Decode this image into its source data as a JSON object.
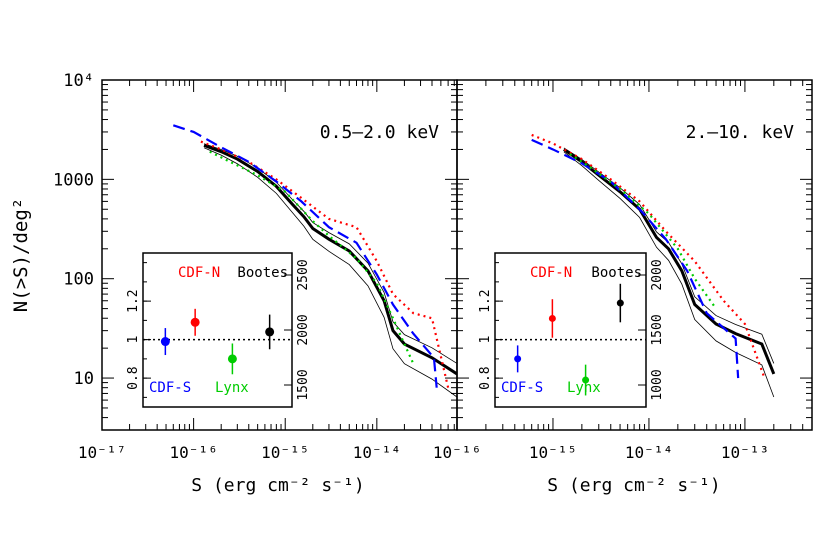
{
  "figure": {
    "ylabel": "N(>S)/deg²",
    "xlabel": "S (erg cm⁻² s⁻¹)"
  },
  "colors": {
    "CDF-N": "#ff0000",
    "Bootes": "#000000",
    "CDF-S": "#0000ff",
    "Lynx": "#00cc00",
    "axis": "#000000"
  },
  "chart_data": [
    {
      "type": "line",
      "title": "0.5–2.0 keV",
      "xscale": "log",
      "yscale": "log",
      "xlim": [
        1e-17,
        7.5e-14
      ],
      "ylim": [
        3,
        10000
      ],
      "x_ticks": [
        {
          "v": 1e-17,
          "label": "10⁻¹⁷"
        },
        {
          "v": 1e-16,
          "label": "10⁻¹⁶"
        },
        {
          "v": 1e-15,
          "label": "10⁻¹⁵"
        },
        {
          "v": 1e-14,
          "label": "10⁻¹⁴"
        }
      ],
      "y_ticks": [
        {
          "v": 10,
          "label": "10"
        },
        {
          "v": 100,
          "label": "100"
        },
        {
          "v": 1000,
          "label": "1000"
        },
        {
          "v": 10000,
          "label": "10⁴"
        }
      ],
      "series": [
        {
          "name": "Bootes",
          "style": "thick",
          "color": "#000000",
          "x": [
            1.3e-16,
            2e-16,
            3e-16,
            5e-16,
            8e-16,
            1.2e-15,
            1.6e-15,
            2e-15,
            3e-15,
            5e-15,
            8e-15,
            1.2e-14,
            1.5e-14,
            2e-14,
            4e-14,
            7.5e-14
          ],
          "y": [
            2200,
            1900,
            1600,
            1200,
            850,
            560,
            420,
            320,
            250,
            190,
            120,
            60,
            30,
            22,
            16,
            11
          ]
        },
        {
          "name": "CDF-N",
          "style": "dotted",
          "color": "#ff0000",
          "x": [
            1.2e-16,
            2e-16,
            4e-16,
            8e-16,
            1.5e-15,
            3e-15,
            6e-15,
            1e-14,
            1.5e-14,
            2.5e-14,
            4e-14,
            6e-14
          ],
          "y": [
            2400,
            2000,
            1500,
            1000,
            650,
            400,
            330,
            150,
            70,
            45,
            40,
            8
          ]
        },
        {
          "name": "CDF-S",
          "style": "dashed",
          "color": "#0000ff",
          "x": [
            6e-17,
            1e-16,
            2e-16,
            4e-16,
            8e-16,
            1.5e-15,
            3e-15,
            6e-15,
            1e-14,
            1.5e-14,
            2.5e-14,
            4.2e-14,
            4.5e-14
          ],
          "y": [
            3500,
            3000,
            2100,
            1500,
            950,
            600,
            330,
            230,
            110,
            55,
            28,
            16,
            8
          ]
        },
        {
          "name": "Lynx",
          "style": "dotted",
          "color": "#00cc00",
          "x": [
            1.5e-16,
            2.5e-16,
            5e-16,
            1e-15,
            2e-15,
            3e-15,
            6e-15,
            1e-14,
            1.5e-14,
            2e-14,
            2.5e-14
          ],
          "y": [
            1900,
            1500,
            1100,
            750,
            380,
            270,
            160,
            90,
            40,
            22,
            14
          ]
        }
      ],
      "inset": {
        "ylim_left": [
          0.65,
          1.45
        ],
        "yticks_left": [
          {
            "v": 0.8,
            "label": "0.8"
          },
          {
            "v": 1,
            "label": "1"
          },
          {
            "v": 1.2,
            "label": "1.2"
          }
        ],
        "yticks_right": [
          {
            "v": 1500,
            "label": "1500"
          },
          {
            "v": 2000,
            "label": "2000"
          },
          {
            "v": 2500,
            "label": "2500"
          }
        ],
        "points": [
          {
            "name": "CDF-S",
            "x": 0.15,
            "y": 0.99,
            "err": 0.07,
            "color": "#0000ff"
          },
          {
            "name": "CDF-N",
            "x": 0.35,
            "y": 1.09,
            "err": 0.07,
            "color": "#ff0000"
          },
          {
            "name": "Lynx",
            "x": 0.6,
            "y": 0.9,
            "err": 0.08,
            "color": "#00cc00"
          },
          {
            "name": "Bootes",
            "x": 0.85,
            "y": 1.04,
            "err": 0.09,
            "color": "#000000"
          }
        ],
        "labels": [
          {
            "text": "CDF-N",
            "color": "#ff0000",
            "pos": "top-left"
          },
          {
            "text": "Bootes",
            "color": "#000000",
            "pos": "top-right"
          },
          {
            "text": "CDF-S",
            "color": "#0000ff",
            "pos": "bottom-left"
          },
          {
            "text": "Lynx",
            "color": "#00cc00",
            "pos": "bottom-mid"
          }
        ]
      }
    },
    {
      "type": "line",
      "title": "2.–10. keV",
      "xscale": "log",
      "yscale": "log",
      "xlim": [
        1e-16,
        5e-13
      ],
      "ylim": [
        3,
        10000
      ],
      "x_ticks": [
        {
          "v": 1e-16,
          "label": "10⁻¹⁶"
        },
        {
          "v": 1e-15,
          "label": "10⁻¹⁵"
        },
        {
          "v": 1e-14,
          "label": "10⁻¹⁴"
        },
        {
          "v": 1e-13,
          "label": "10⁻¹³"
        }
      ],
      "series": [
        {
          "name": "Bootes",
          "style": "thick",
          "color": "#000000",
          "x": [
            1.3e-15,
            2e-15,
            3e-15,
            5e-15,
            8e-15,
            1.2e-14,
            1.6e-14,
            2.2e-14,
            3e-14,
            5e-14,
            8e-14,
            1.5e-13,
            2e-13
          ],
          "y": [
            2000,
            1500,
            1100,
            750,
            500,
            260,
            200,
            120,
            55,
            35,
            28,
            22,
            11
          ]
        },
        {
          "name": "CDF-N",
          "style": "dotted",
          "color": "#ff0000",
          "x": [
            6e-16,
            1e-15,
            2e-15,
            4e-15,
            8e-15,
            1.5e-14,
            3e-14,
            6e-14,
            1e-13,
            1.6e-13
          ],
          "y": [
            2800,
            2300,
            1600,
            1000,
            600,
            300,
            150,
            60,
            35,
            10
          ]
        },
        {
          "name": "CDF-S",
          "style": "dashed",
          "color": "#0000ff",
          "x": [
            6e-16,
            1e-15,
            2e-15,
            4e-15,
            8e-15,
            1.5e-14,
            2.5e-14,
            4e-14,
            8e-14,
            8.5e-14
          ],
          "y": [
            2500,
            2000,
            1450,
            950,
            500,
            250,
            120,
            45,
            25,
            10
          ]
        },
        {
          "name": "Lynx",
          "style": "dotted",
          "color": "#00cc00",
          "x": [
            1.5e-15,
            2.5e-15,
            5e-15,
            1e-14,
            2e-14,
            3e-14,
            5e-14
          ],
          "y": [
            1800,
            1300,
            800,
            450,
            200,
            100,
            50
          ]
        }
      ],
      "inset": {
        "ylim_left": [
          0.65,
          1.45
        ],
        "yticks_left": [
          {
            "v": 0.8,
            "label": "0.8"
          },
          {
            "v": 1,
            "label": "1"
          },
          {
            "v": 1.2,
            "label": "1.2"
          }
        ],
        "yticks_right": [
          {
            "v": 1000,
            "label": "1000"
          },
          {
            "v": 1500,
            "label": "1500"
          },
          {
            "v": 2000,
            "label": "2000"
          }
        ],
        "points": [
          {
            "name": "CDF-S",
            "x": 0.15,
            "y": 0.9,
            "err": 0.07,
            "color": "#0000ff"
          },
          {
            "name": "CDF-N",
            "x": 0.38,
            "y": 1.11,
            "err": 0.1,
            "color": "#ff0000"
          },
          {
            "name": "Lynx",
            "x": 0.6,
            "y": 0.79,
            "err": 0.08,
            "color": "#00cc00"
          },
          {
            "name": "Bootes",
            "x": 0.83,
            "y": 1.19,
            "err": 0.1,
            "color": "#000000"
          }
        ],
        "labels": [
          {
            "text": "CDF-N",
            "color": "#ff0000",
            "pos": "top-left"
          },
          {
            "text": "Bootes",
            "color": "#000000",
            "pos": "top-right"
          },
          {
            "text": "CDF-S",
            "color": "#0000ff",
            "pos": "bottom-left"
          },
          {
            "text": "Lynx",
            "color": "#00cc00",
            "pos": "bottom-mid"
          }
        ]
      }
    }
  ]
}
